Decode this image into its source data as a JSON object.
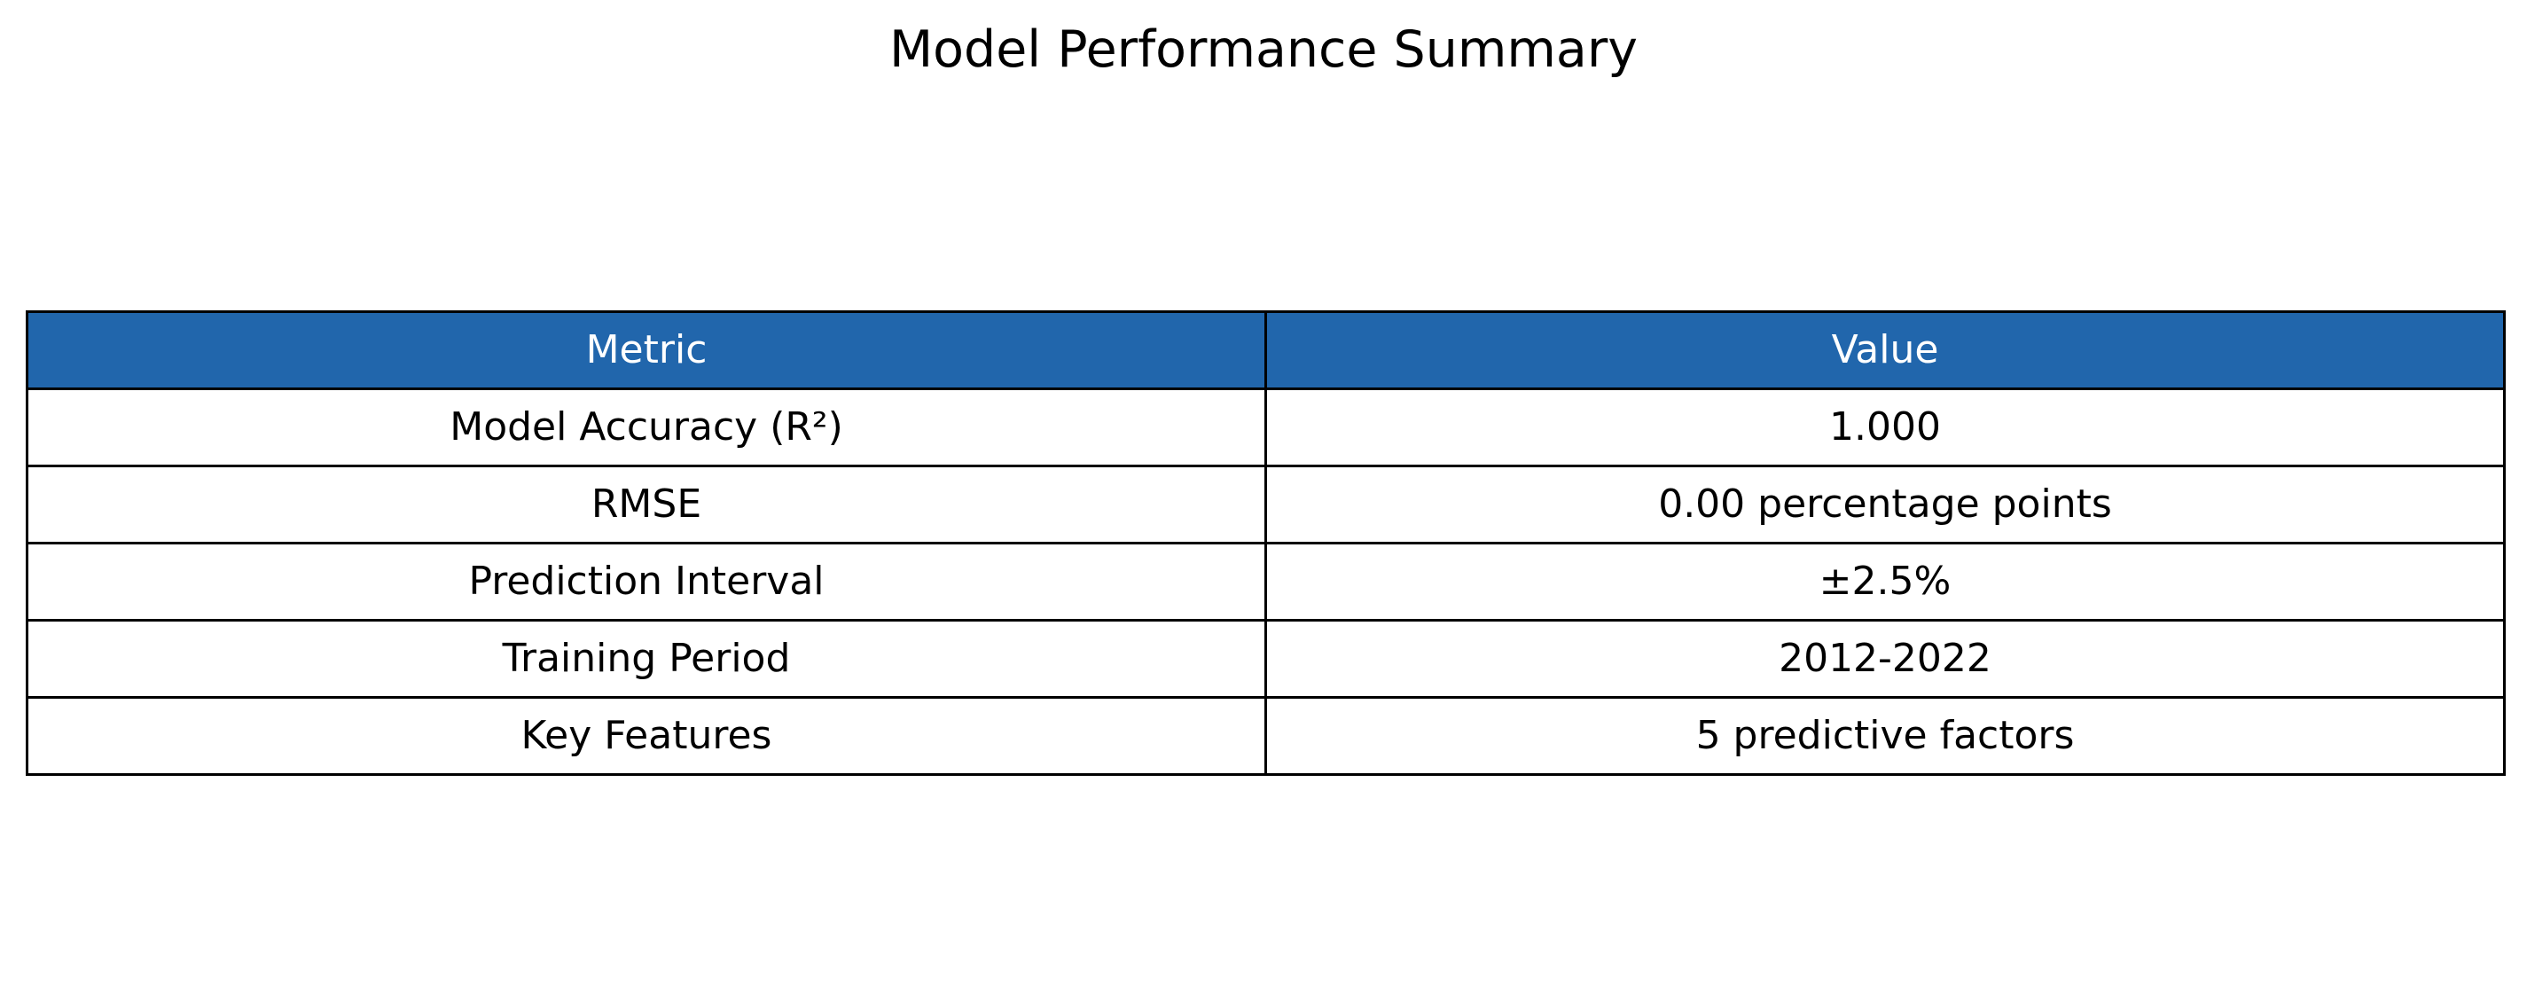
{
  "chart_data": {
    "type": "table",
    "title": "Model Performance Summary",
    "columns": [
      "Metric",
      "Value"
    ],
    "rows": [
      [
        "Model Accuracy (R²)",
        "1.000"
      ],
      [
        "RMSE",
        "0.00 percentage points"
      ],
      [
        "Prediction Interval",
        "±2.5%"
      ],
      [
        "Training Period",
        "2012-2022"
      ],
      [
        "Key Features",
        "5 predictive factors"
      ]
    ],
    "header_color": "#2166ac",
    "border_color": "#000000"
  }
}
